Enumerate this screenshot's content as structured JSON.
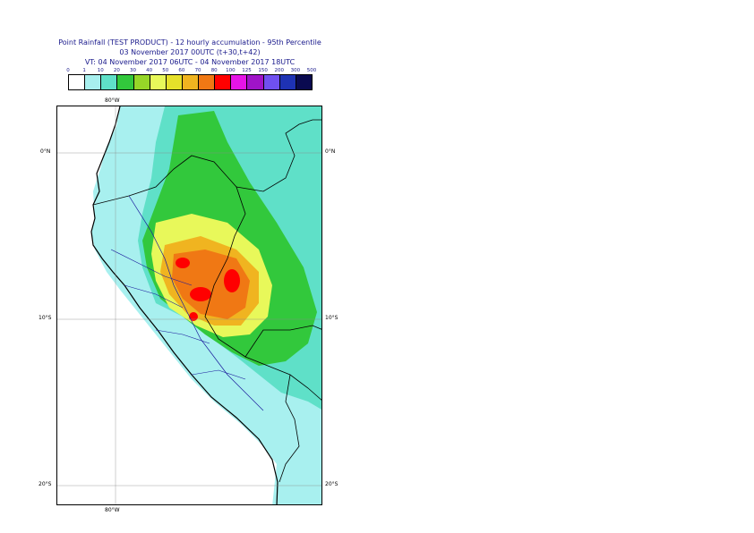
{
  "title": {
    "line1": "Point Rainfall (TEST PRODUCT) - 12 hourly accumulation - 95th Percentile",
    "line2": "03 November 2017 00UTC (t+30,t+42)",
    "line3": "VT: 04 November 2017 06UTC - 04 November 2017 18UTC"
  },
  "legend": {
    "labels": [
      "0",
      "1",
      "10",
      "20",
      "30",
      "40",
      "50",
      "60",
      "70",
      "80",
      "100",
      "125",
      "150",
      "200",
      "300",
      "500"
    ],
    "colors": [
      "#ffffff",
      "#a8f0ef",
      "#5fe0c8",
      "#32c83c",
      "#96d628",
      "#e8f85a",
      "#e6e02a",
      "#f0b420",
      "#f07814",
      "#ff0000",
      "#e614e6",
      "#a014c8",
      "#7050f0",
      "#1e32b4",
      "#0a0a50"
    ]
  },
  "map": {
    "lon_labels": [
      "80°W",
      "80°W"
    ],
    "lat_labels_left": [
      "0°N",
      "10°S",
      "20°S"
    ],
    "lat_labels_right": [
      "0°N",
      "10°S",
      "20°S"
    ]
  }
}
